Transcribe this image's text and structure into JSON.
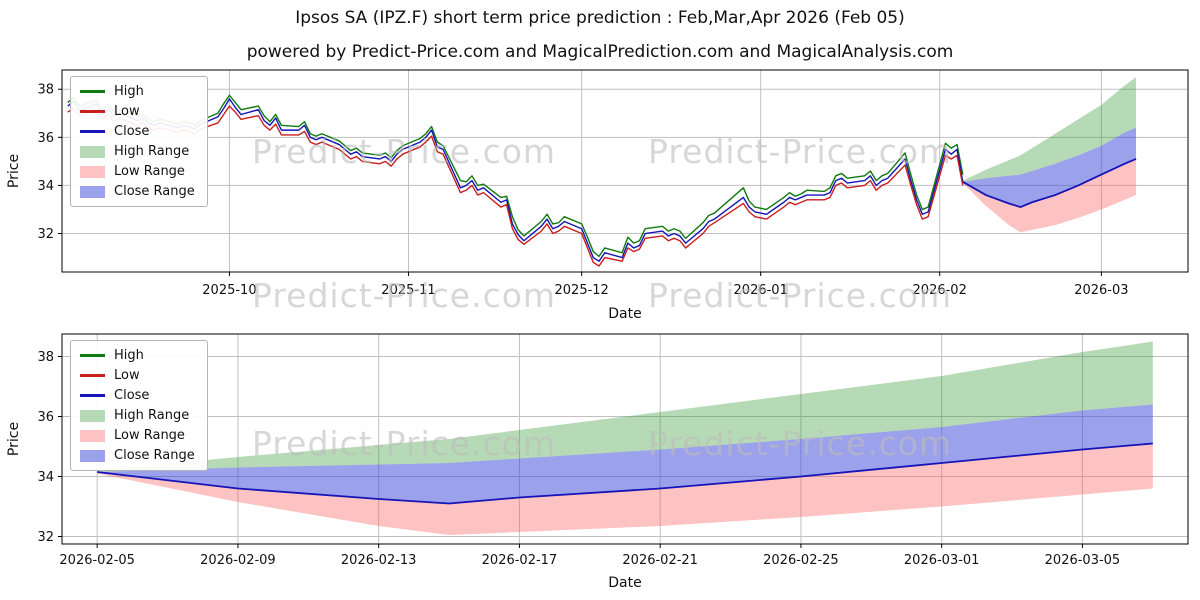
{
  "figure": {
    "title": "Ipsos SA (IPZ.F) short term price prediction : Feb,Mar,Apr 2026 (Feb 05)",
    "subtitle": "powered by Predict-Price.com and MagicalPrediction.com and MagicalAnalysis.com",
    "watermark": "Predict-Price.com"
  },
  "colors": {
    "high": "#0f7a0f",
    "low": "#c81e1e",
    "close": "#1414b8",
    "high_range": "rgba(44,150,44,0.35)",
    "low_range": "rgba(250,95,95,0.38)",
    "close_range": "rgba(58,68,215,0.50)",
    "grid": "#c0c0c0",
    "frame": "#000000",
    "text": "#111111"
  },
  "chart_data": [
    {
      "type": "line",
      "title": "",
      "xlabel": "Date",
      "ylabel": "Price",
      "ylim": [
        30.4,
        38.8
      ],
      "yticks": [
        32,
        34,
        36,
        38
      ],
      "xrange": [
        "2025-09-02",
        "2026-03-16"
      ],
      "xticks": [
        {
          "date": "2025-10-01",
          "label": "2025-10"
        },
        {
          "date": "2025-11-01",
          "label": "2025-11"
        },
        {
          "date": "2025-12-01",
          "label": "2025-12"
        },
        {
          "date": "2026-01-01",
          "label": "2026-01"
        },
        {
          "date": "2026-02-01",
          "label": "2026-02"
        },
        {
          "date": "2026-03-01",
          "label": "2026-03"
        }
      ],
      "legend": [
        {
          "label": "High",
          "swatch": "line",
          "color_key": "high"
        },
        {
          "label": "Low",
          "swatch": "line",
          "color_key": "low"
        },
        {
          "label": "Close",
          "swatch": "line",
          "color_key": "close"
        },
        {
          "label": "High Range",
          "swatch": "patch",
          "color_key": "high_range"
        },
        {
          "label": "Low Range",
          "swatch": "patch",
          "color_key": "low_range"
        },
        {
          "label": "Close Range",
          "swatch": "patch",
          "color_key": "close_range"
        }
      ],
      "history": {
        "columns": [
          "date",
          "high",
          "low",
          "close"
        ],
        "rows": [
          [
            "2025-09-03",
            37.45,
            37.05,
            37.3
          ],
          [
            "2025-09-04",
            37.65,
            37.2,
            37.5
          ],
          [
            "2025-09-05",
            37.3,
            36.9,
            37.1
          ],
          [
            "2025-09-08",
            37.55,
            37.1,
            37.4
          ],
          [
            "2025-09-09",
            37.15,
            36.75,
            36.95
          ],
          [
            "2025-09-10",
            37.35,
            36.95,
            37.2
          ],
          [
            "2025-09-11",
            37.05,
            36.65,
            36.85
          ],
          [
            "2025-09-12",
            37.15,
            36.8,
            37.0
          ],
          [
            "2025-09-15",
            36.9,
            36.5,
            36.7
          ],
          [
            "2025-09-16",
            36.95,
            36.6,
            36.8
          ],
          [
            "2025-09-17",
            36.75,
            36.4,
            36.6
          ],
          [
            "2025-09-18",
            36.65,
            36.3,
            36.5
          ],
          [
            "2025-09-19",
            36.75,
            36.4,
            36.6
          ],
          [
            "2025-09-22",
            36.55,
            36.2,
            36.4
          ],
          [
            "2025-09-23",
            36.65,
            36.3,
            36.5
          ],
          [
            "2025-09-24",
            36.6,
            36.25,
            36.45
          ],
          [
            "2025-09-25",
            36.5,
            36.15,
            36.35
          ],
          [
            "2025-09-26",
            36.7,
            36.35,
            36.55
          ],
          [
            "2025-09-29",
            37.0,
            36.6,
            36.85
          ],
          [
            "2025-09-30",
            37.4,
            36.95,
            37.2
          ],
          [
            "2025-10-01",
            37.75,
            37.3,
            37.6
          ],
          [
            "2025-10-02",
            37.45,
            37.05,
            37.25
          ],
          [
            "2025-10-03",
            37.15,
            36.75,
            36.95
          ],
          [
            "2025-10-06",
            37.3,
            36.9,
            37.15
          ],
          [
            "2025-10-07",
            36.9,
            36.5,
            36.7
          ],
          [
            "2025-10-08",
            36.65,
            36.3,
            36.5
          ],
          [
            "2025-10-09",
            36.95,
            36.55,
            36.8
          ],
          [
            "2025-10-10",
            36.5,
            36.1,
            36.3
          ],
          [
            "2025-10-13",
            36.45,
            36.1,
            36.3
          ],
          [
            "2025-10-14",
            36.65,
            36.25,
            36.5
          ],
          [
            "2025-10-15",
            36.15,
            35.8,
            36.0
          ],
          [
            "2025-10-16",
            36.05,
            35.7,
            35.9
          ],
          [
            "2025-10-17",
            36.15,
            35.8,
            36.0
          ],
          [
            "2025-10-20",
            35.85,
            35.5,
            35.7
          ],
          [
            "2025-10-21",
            35.65,
            35.3,
            35.5
          ],
          [
            "2025-10-22",
            35.45,
            35.1,
            35.3
          ],
          [
            "2025-10-23",
            35.55,
            35.2,
            35.4
          ],
          [
            "2025-10-24",
            35.35,
            35.0,
            35.2
          ],
          [
            "2025-10-27",
            35.25,
            34.9,
            35.1
          ],
          [
            "2025-10-28",
            35.35,
            35.0,
            35.2
          ],
          [
            "2025-10-29",
            35.15,
            34.8,
            35.0
          ],
          [
            "2025-10-30",
            35.45,
            35.1,
            35.3
          ],
          [
            "2025-10-31",
            35.65,
            35.3,
            35.5
          ],
          [
            "2025-11-03",
            35.95,
            35.6,
            35.8
          ],
          [
            "2025-11-04",
            36.15,
            35.8,
            36.0
          ],
          [
            "2025-11-05",
            36.45,
            36.05,
            36.3
          ],
          [
            "2025-11-06",
            35.8,
            35.4,
            35.6
          ],
          [
            "2025-11-07",
            35.65,
            35.3,
            35.5
          ],
          [
            "2025-11-10",
            34.2,
            33.7,
            33.9
          ],
          [
            "2025-11-11",
            34.15,
            33.8,
            34.0
          ],
          [
            "2025-11-12",
            34.4,
            34.0,
            34.2
          ],
          [
            "2025-11-13",
            34.0,
            33.6,
            33.8
          ],
          [
            "2025-11-14",
            34.05,
            33.7,
            33.9
          ],
          [
            "2025-11-17",
            33.5,
            33.1,
            33.3
          ],
          [
            "2025-11-18",
            33.55,
            33.2,
            33.4
          ],
          [
            "2025-11-19",
            32.7,
            32.2,
            32.4
          ],
          [
            "2025-11-20",
            32.15,
            31.75,
            31.95
          ],
          [
            "2025-11-21",
            31.9,
            31.55,
            31.7
          ],
          [
            "2025-11-24",
            32.5,
            32.1,
            32.3
          ],
          [
            "2025-11-25",
            32.8,
            32.4,
            32.6
          ],
          [
            "2025-11-26",
            32.4,
            32.0,
            32.2
          ],
          [
            "2025-11-27",
            32.45,
            32.1,
            32.3
          ],
          [
            "2025-11-28",
            32.7,
            32.3,
            32.5
          ],
          [
            "2025-12-01",
            32.4,
            32.0,
            32.2
          ],
          [
            "2025-12-02",
            31.85,
            31.4,
            31.6
          ],
          [
            "2025-12-03",
            31.25,
            30.8,
            31.0
          ],
          [
            "2025-12-04",
            31.05,
            30.65,
            30.85
          ],
          [
            "2025-12-05",
            31.4,
            31.0,
            31.2
          ],
          [
            "2025-12-08",
            31.2,
            30.85,
            31.0
          ],
          [
            "2025-12-09",
            31.85,
            31.4,
            31.6
          ],
          [
            "2025-12-10",
            31.6,
            31.25,
            31.4
          ],
          [
            "2025-12-11",
            31.7,
            31.35,
            31.5
          ],
          [
            "2025-12-12",
            32.2,
            31.8,
            32.0
          ],
          [
            "2025-12-15",
            32.3,
            31.9,
            32.1
          ],
          [
            "2025-12-16",
            32.1,
            31.7,
            31.9
          ],
          [
            "2025-12-17",
            32.2,
            31.8,
            32.0
          ],
          [
            "2025-12-18",
            32.1,
            31.7,
            31.9
          ],
          [
            "2025-12-19",
            31.8,
            31.4,
            31.6
          ],
          [
            "2025-12-22",
            32.45,
            32.0,
            32.2
          ],
          [
            "2025-12-23",
            32.75,
            32.3,
            32.5
          ],
          [
            "2025-12-24",
            32.85,
            32.45,
            32.6
          ],
          [
            "2025-12-29",
            33.9,
            33.25,
            33.5
          ],
          [
            "2025-12-30",
            33.35,
            32.9,
            33.1
          ],
          [
            "2025-12-31",
            33.1,
            32.7,
            32.9
          ],
          [
            "2026-01-02",
            33.0,
            32.6,
            32.8
          ],
          [
            "2026-01-05",
            33.5,
            33.1,
            33.3
          ],
          [
            "2026-01-06",
            33.7,
            33.3,
            33.5
          ],
          [
            "2026-01-07",
            33.55,
            33.2,
            33.4
          ],
          [
            "2026-01-08",
            33.65,
            33.3,
            33.5
          ],
          [
            "2026-01-09",
            33.8,
            33.4,
            33.6
          ],
          [
            "2026-01-12",
            33.75,
            33.4,
            33.6
          ],
          [
            "2026-01-13",
            33.9,
            33.5,
            33.7
          ],
          [
            "2026-01-14",
            34.4,
            34.0,
            34.2
          ],
          [
            "2026-01-15",
            34.5,
            34.1,
            34.3
          ],
          [
            "2026-01-16",
            34.3,
            33.9,
            34.1
          ],
          [
            "2026-01-19",
            34.4,
            34.0,
            34.2
          ],
          [
            "2026-01-20",
            34.6,
            34.2,
            34.4
          ],
          [
            "2026-01-21",
            34.2,
            33.8,
            34.0
          ],
          [
            "2026-01-22",
            34.4,
            34.0,
            34.2
          ],
          [
            "2026-01-23",
            34.5,
            34.1,
            34.3
          ],
          [
            "2026-01-26",
            35.35,
            34.85,
            35.1
          ],
          [
            "2026-01-27",
            34.45,
            34.0,
            34.2
          ],
          [
            "2026-01-28",
            33.6,
            33.2,
            33.4
          ],
          [
            "2026-01-29",
            33.0,
            32.6,
            32.8
          ],
          [
            "2026-01-30",
            33.1,
            32.7,
            32.9
          ],
          [
            "2026-02-02",
            35.75,
            35.25,
            35.5
          ],
          [
            "2026-02-03",
            35.55,
            35.1,
            35.3
          ],
          [
            "2026-02-04",
            35.7,
            35.25,
            35.5
          ],
          [
            "2026-02-05",
            34.45,
            34.0,
            34.15
          ]
        ]
      },
      "forecast": {
        "columns": [
          "date",
          "close",
          "close_upper",
          "high_upper",
          "low_lower"
        ],
        "rows": [
          [
            "2026-02-05",
            34.15,
            34.15,
            34.2,
            34.1
          ],
          [
            "2026-02-09",
            33.6,
            34.3,
            34.65,
            33.15
          ],
          [
            "2026-02-13",
            33.25,
            34.4,
            35.05,
            32.35
          ],
          [
            "2026-02-15",
            33.1,
            34.45,
            35.25,
            32.05
          ],
          [
            "2026-02-17",
            33.3,
            34.6,
            35.55,
            32.15
          ],
          [
            "2026-02-21",
            33.6,
            34.9,
            36.15,
            32.35
          ],
          [
            "2026-02-25",
            34.0,
            35.25,
            36.75,
            32.65
          ],
          [
            "2026-03-01",
            34.45,
            35.65,
            37.35,
            33.0
          ],
          [
            "2026-03-05",
            34.9,
            36.2,
            38.15,
            33.4
          ],
          [
            "2026-03-07",
            35.1,
            36.4,
            38.5,
            33.6
          ]
        ]
      }
    },
    {
      "type": "line",
      "title": "",
      "xlabel": "Date",
      "ylabel": "Price",
      "ylim": [
        31.75,
        38.75
      ],
      "yticks": [
        32,
        34,
        36,
        38
      ],
      "xrange": [
        "2026-02-04",
        "2026-03-08"
      ],
      "xticks": [
        {
          "date": "2026-02-05",
          "label": "2026-02-05"
        },
        {
          "date": "2026-02-09",
          "label": "2026-02-09"
        },
        {
          "date": "2026-02-13",
          "label": "2026-02-13"
        },
        {
          "date": "2026-02-17",
          "label": "2026-02-17"
        },
        {
          "date": "2026-02-21",
          "label": "2026-02-21"
        },
        {
          "date": "2026-02-25",
          "label": "2026-02-25"
        },
        {
          "date": "2026-03-01",
          "label": "2026-03-01"
        },
        {
          "date": "2026-03-05",
          "label": "2026-03-05"
        }
      ],
      "legend": [
        {
          "label": "High",
          "swatch": "line",
          "color_key": "high"
        },
        {
          "label": "Low",
          "swatch": "line",
          "color_key": "low"
        },
        {
          "label": "Close",
          "swatch": "line",
          "color_key": "close"
        },
        {
          "label": "High Range",
          "swatch": "patch",
          "color_key": "high_range"
        },
        {
          "label": "Low Range",
          "swatch": "patch",
          "color_key": "low_range"
        },
        {
          "label": "Close Range",
          "swatch": "patch",
          "color_key": "close_range"
        }
      ],
      "forecast": {
        "columns": [
          "date",
          "close",
          "close_upper",
          "high_upper",
          "low_lower"
        ],
        "rows": [
          [
            "2026-02-05",
            34.15,
            34.15,
            34.2,
            34.1
          ],
          [
            "2026-02-09",
            33.6,
            34.3,
            34.65,
            33.15
          ],
          [
            "2026-02-13",
            33.25,
            34.4,
            35.05,
            32.35
          ],
          [
            "2026-02-15",
            33.1,
            34.45,
            35.25,
            32.05
          ],
          [
            "2026-02-17",
            33.3,
            34.6,
            35.55,
            32.15
          ],
          [
            "2026-02-21",
            33.6,
            34.9,
            36.15,
            32.35
          ],
          [
            "2026-02-25",
            34.0,
            35.25,
            36.75,
            32.65
          ],
          [
            "2026-03-01",
            34.45,
            35.65,
            37.35,
            33.0
          ],
          [
            "2026-03-05",
            34.9,
            36.2,
            38.15,
            33.4
          ],
          [
            "2026-03-07",
            35.1,
            36.4,
            38.5,
            33.6
          ]
        ]
      }
    }
  ]
}
